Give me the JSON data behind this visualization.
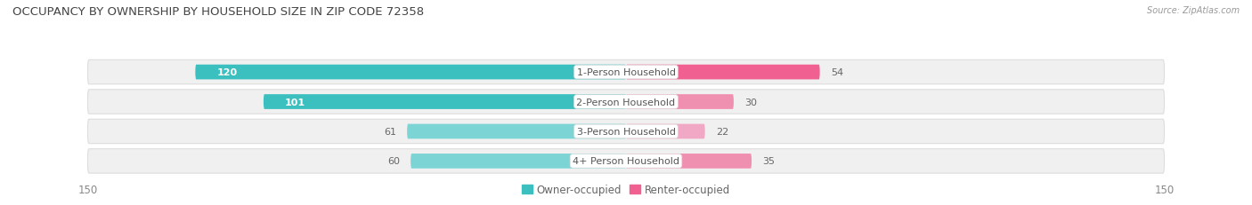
{
  "title": "OCCUPANCY BY OWNERSHIP BY HOUSEHOLD SIZE IN ZIP CODE 72358",
  "source": "Source: ZipAtlas.com",
  "categories": [
    "1-Person Household",
    "2-Person Household",
    "3-Person Household",
    "4+ Person Household"
  ],
  "owner_values": [
    120,
    101,
    61,
    60
  ],
  "renter_values": [
    54,
    30,
    22,
    35
  ],
  "owner_colors": [
    "#3BBFBF",
    "#3BBFBF",
    "#7DD4D4",
    "#7DD4D4"
  ],
  "renter_colors": [
    "#F06090",
    "#F090B0",
    "#F0A8C4",
    "#F090B0"
  ],
  "row_bg_color": "#EBEBEB",
  "row_inner_bg": "#F7F7F7",
  "xlim": 150,
  "label_fontsize": 8.0,
  "title_fontsize": 9.5,
  "tick_fontsize": 8.5,
  "legend_fontsize": 8.5,
  "owner_label": "Owner-occupied",
  "renter_label": "Renter-occupied",
  "fig_width": 14.06,
  "fig_height": 2.32,
  "dpi": 100
}
